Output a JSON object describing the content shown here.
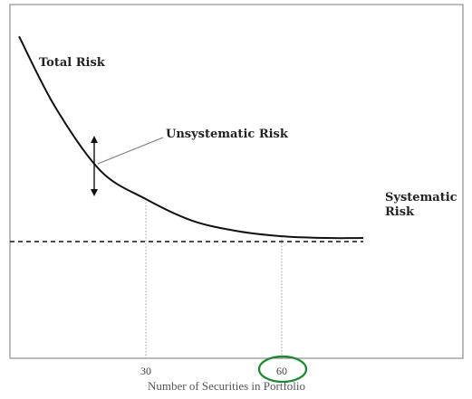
{
  "chart_data": {
    "type": "line",
    "xlabel": "Number of Securities in Portfolio",
    "ylabel": "",
    "xlim": [
      0,
      100
    ],
    "ylim": [
      0,
      100
    ],
    "x_ticks": [
      30,
      60
    ],
    "grid": false,
    "series": [
      {
        "name": "Total Risk",
        "x": [
          2,
          10,
          20,
          30,
          40,
          50,
          60,
          70,
          78
        ],
        "y": [
          91,
          71,
          53,
          45,
          39,
          36,
          34.5,
          34,
          34
        ]
      },
      {
        "name": "Systematic Risk",
        "x": [
          0,
          78
        ],
        "y": [
          33,
          33
        ]
      }
    ],
    "annotations": {
      "total_risk": "Total Risk",
      "unsystematic_risk": "Unsystematic Risk",
      "systematic_risk_line1": "Systematic",
      "systematic_risk_line2": "Risk"
    },
    "highlight": {
      "tick": 60,
      "color": "#1a8a2e"
    },
    "colors": {
      "curve": "#111111",
      "guides": "#9a9a9a"
    }
  }
}
